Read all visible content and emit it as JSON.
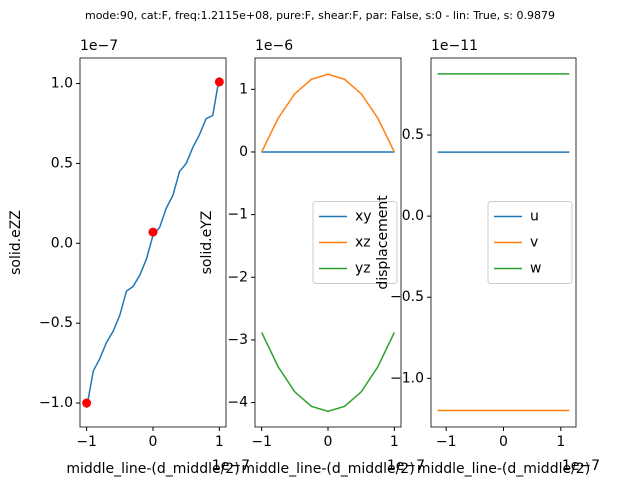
{
  "title": "mode:90, cat:F, freq:1.2115e+08, pure:F, shear:F, par: False, s:0 - lin: True, s: 0.9879",
  "chart_data": [
    {
      "type": "line",
      "xlabel": "middle_line-(d_middle/2)",
      "ylabel": "solid.eZZ",
      "x_offset_label": "1e−7",
      "y_offset_label": "1e−7",
      "xlim": [
        -1.1,
        1.1
      ],
      "ylim": [
        -1.15,
        1.16
      ],
      "xticks": [
        {
          "value": -1,
          "label": "−1"
        },
        0,
        1
      ],
      "yticks": [
        {
          "value": -1.0,
          "label": "−1.0"
        },
        {
          "value": -0.5,
          "label": "−0.5"
        },
        {
          "value": 0.0,
          "label": "0.0"
        },
        0.5,
        {
          "value": 1.0,
          "label": "1.0"
        }
      ],
      "series": [
        {
          "style": "line",
          "color": "#1f77b4",
          "x": [
            -1.0,
            -0.9,
            -0.8,
            -0.7,
            -0.6,
            -0.5,
            -0.4,
            -0.3,
            -0.2,
            -0.1,
            0.0,
            0.1,
            0.2,
            0.3,
            0.4,
            0.5,
            0.6,
            0.7,
            0.8,
            0.9,
            1.0
          ],
          "values": [
            -1.03,
            -0.8,
            -0.72,
            -0.62,
            -0.55,
            -0.45,
            -0.3,
            -0.27,
            -0.2,
            -0.1,
            0.05,
            0.1,
            0.22,
            0.3,
            0.45,
            0.5,
            0.6,
            0.68,
            0.78,
            0.8,
            1.04
          ]
        },
        {
          "style": "markers",
          "color": "#ff0000",
          "x": [
            -1.0,
            0.0,
            1.0
          ],
          "values": [
            -1.0,
            0.07,
            1.01
          ]
        }
      ]
    },
    {
      "type": "line",
      "xlabel": "middle_line-(d_middle/2)",
      "ylabel": "solid.eYZ",
      "x_offset_label": "1e−7",
      "y_offset_label": "1e−6",
      "xlim": [
        -1.1,
        1.1
      ],
      "ylim": [
        -4.39,
        1.5
      ],
      "xticks": [
        {
          "value": -1,
          "label": "−1"
        },
        0,
        1
      ],
      "yticks": [
        {
          "value": -4,
          "label": "−4"
        },
        {
          "value": -3,
          "label": "−3"
        },
        {
          "value": -2,
          "label": "−2"
        },
        {
          "value": -1,
          "label": "−1"
        },
        0,
        1
      ],
      "legend": "center right",
      "series": [
        {
          "name": "xy",
          "style": "line",
          "color": "#1f77b4",
          "x": [
            -1.0,
            -0.75,
            -0.5,
            -0.25,
            0.0,
            0.25,
            0.5,
            0.75,
            1.0
          ],
          "values": [
            0,
            0,
            0,
            0,
            0,
            0,
            0,
            0,
            0
          ]
        },
        {
          "name": "xz",
          "style": "line",
          "color": "#ff7f0e",
          "x": [
            -1.0,
            -0.75,
            -0.5,
            -0.25,
            0.0,
            0.25,
            0.5,
            0.75,
            1.0
          ],
          "values": [
            0,
            0.54,
            0.93,
            1.16,
            1.24,
            1.16,
            0.93,
            0.54,
            0
          ]
        },
        {
          "name": "yz",
          "style": "line",
          "color": "#2ca02c",
          "x": [
            -1.0,
            -0.75,
            -0.5,
            -0.25,
            0.0,
            0.25,
            0.5,
            0.75,
            1.0
          ],
          "values": [
            -2.88,
            -3.43,
            -3.83,
            -4.06,
            -4.14,
            -4.06,
            -3.83,
            -3.43,
            -2.88
          ]
        }
      ]
    },
    {
      "type": "line",
      "xlabel": "middle_line-(d_middle/2)",
      "ylabel": "displacement",
      "x_offset_label": "1e−7",
      "y_offset_label": "1e−11",
      "xlim": [
        -1.265,
        1.265
      ],
      "ylim": [
        -1.3,
        0.975
      ],
      "xticks": [
        {
          "value": -1,
          "label": "−1"
        },
        0,
        1
      ],
      "yticks": [
        {
          "value": -1.0,
          "label": "−1.0"
        },
        {
          "value": -0.5,
          "label": "−0.5"
        },
        {
          "value": 0.0,
          "label": "0.0"
        },
        0.5
      ],
      "legend": "center right",
      "series": [
        {
          "name": "u",
          "style": "line",
          "color": "#1f77b4",
          "x": [
            -1.15,
            1.15
          ],
          "values": [
            0.395,
            0.395
          ]
        },
        {
          "name": "v",
          "style": "line",
          "color": "#ff7f0e",
          "x": [
            -1.15,
            1.15
          ],
          "values": [
            -1.198,
            -1.198
          ]
        },
        {
          "name": "w",
          "style": "line",
          "color": "#2ca02c",
          "x": [
            -1.15,
            1.15
          ],
          "values": [
            0.877,
            0.877
          ]
        }
      ]
    }
  ]
}
